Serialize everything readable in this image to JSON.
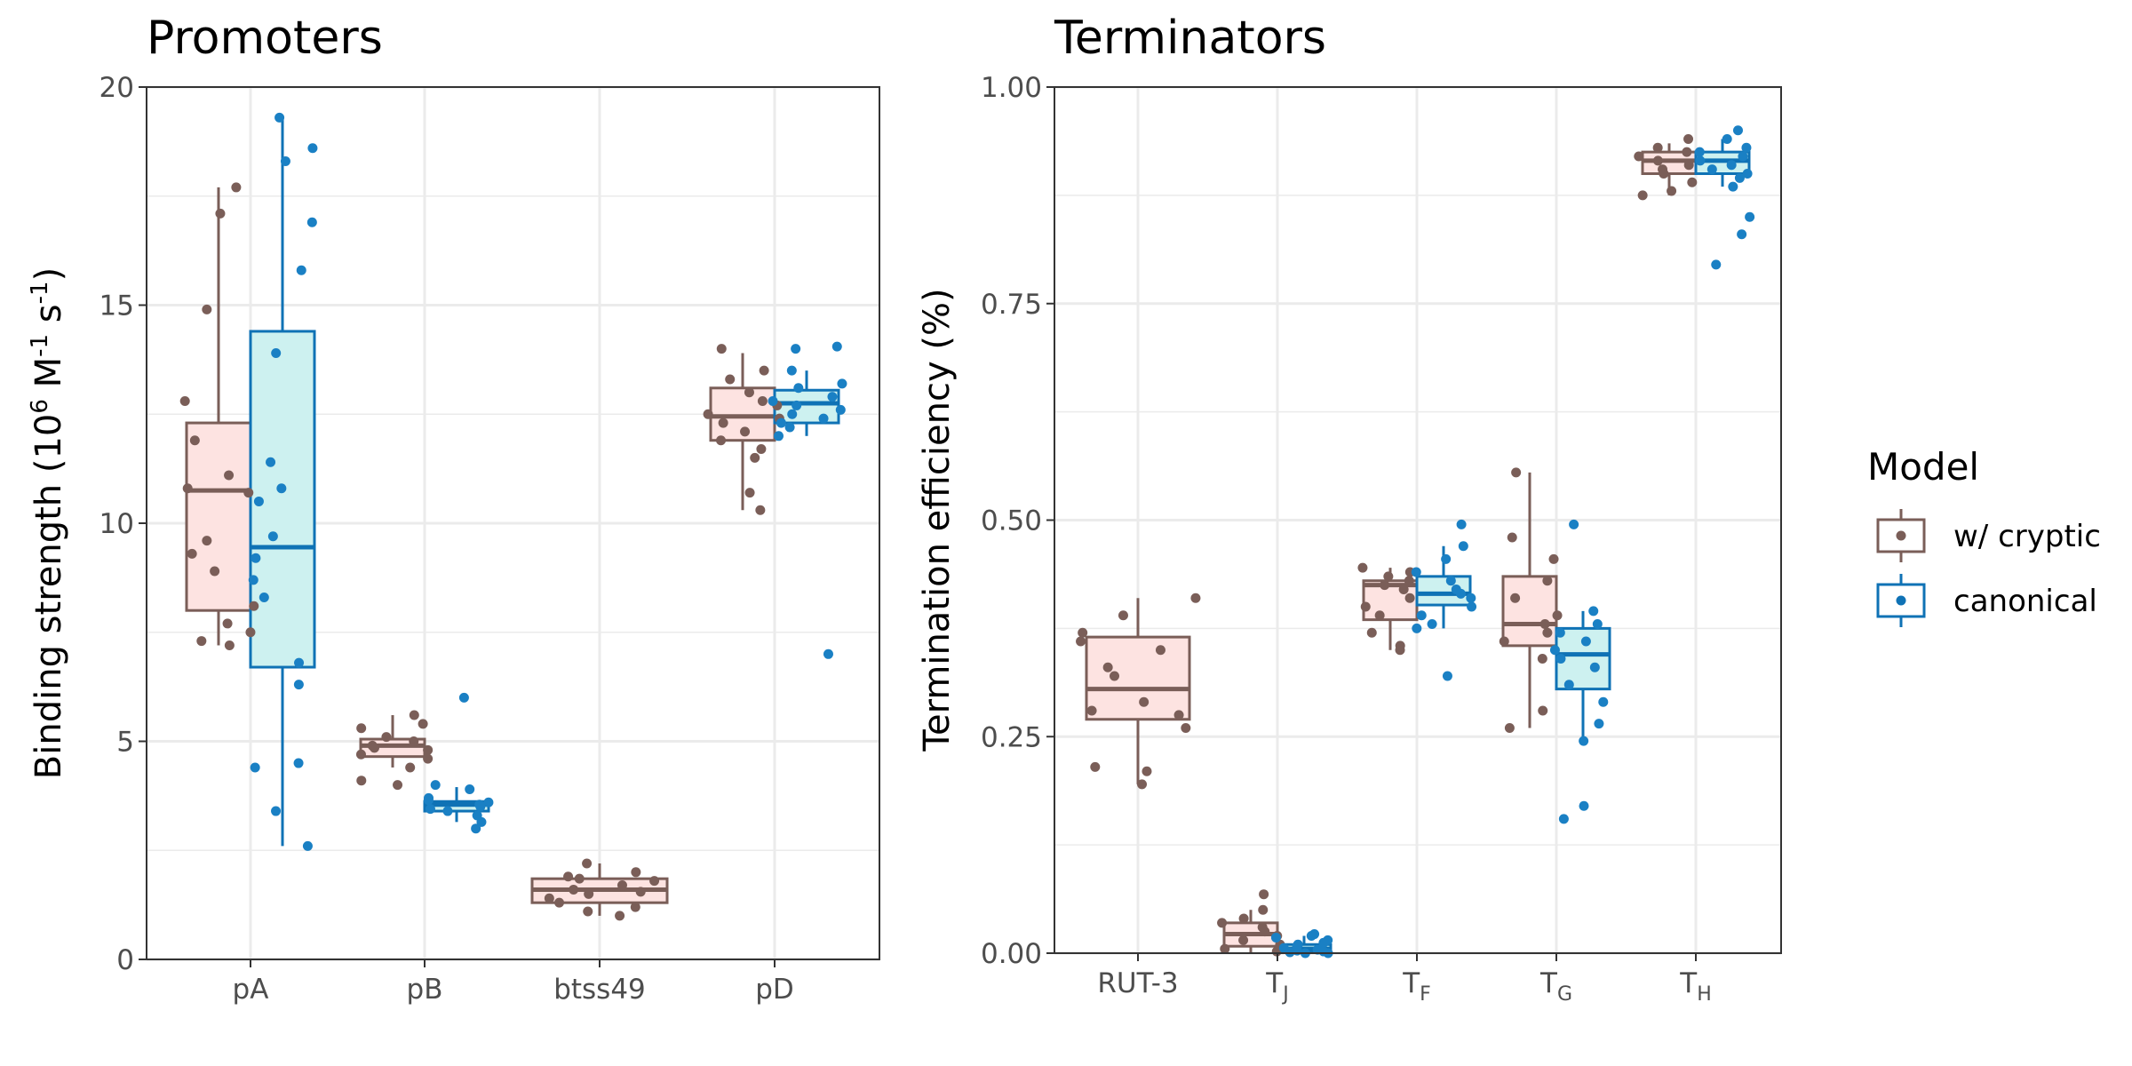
{
  "chart_data": [
    {
      "type": "box",
      "title": "Promoters",
      "ylabel": "Binding strength (10^6 M^-1 s^-1)",
      "ylabel_parts": {
        "lead": "Binding strength (10",
        "sup1": "6",
        "m": " M",
        "sup2": "-1",
        "s": " s",
        "sup3": "-1",
        "tail": ")"
      },
      "ylim": [
        0,
        20
      ],
      "yticks": [
        {
          "value": 0,
          "label": "0"
        },
        {
          "value": 5,
          "label": "5"
        },
        {
          "value": 10,
          "label": "10"
        },
        {
          "value": 15,
          "label": "15"
        },
        {
          "value": 20,
          "label": "20"
        }
      ],
      "categories": [
        {
          "label": "pA",
          "sub": ""
        },
        {
          "label": "pB",
          "sub": ""
        },
        {
          "label": "btss49",
          "sub": ""
        },
        {
          "label": "pD",
          "sub": ""
        }
      ],
      "groups": [
        {
          "category": "pA",
          "series": "w/ cryptic",
          "box": {
            "q1": 8.0,
            "median": 10.75,
            "q3": 12.3,
            "whisker_low": 7.2,
            "whisker_high": 17.7
          },
          "points": [
            17.7,
            17.1,
            14.9,
            12.8,
            11.9,
            11.1,
            10.8,
            10.7,
            9.6,
            9.3,
            8.9,
            8.1,
            7.7,
            7.5,
            7.3,
            7.2
          ]
        },
        {
          "category": "pA",
          "series": "canonical",
          "box": {
            "q1": 6.7,
            "median": 9.45,
            "q3": 14.4,
            "whisker_low": 2.6,
            "whisker_high": 19.3
          },
          "points": [
            19.3,
            18.6,
            18.3,
            16.9,
            15.8,
            13.9,
            11.4,
            10.8,
            10.5,
            9.7,
            9.2,
            8.7,
            8.3,
            6.8,
            6.3,
            4.5,
            4.4,
            3.4,
            2.6
          ]
        },
        {
          "category": "pB",
          "series": "w/ cryptic",
          "box": {
            "q1": 4.65,
            "median": 4.9,
            "q3": 5.05,
            "whisker_low": 4.4,
            "whisker_high": 5.6
          },
          "points": [
            5.6,
            5.4,
            5.3,
            5.1,
            5.0,
            4.9,
            4.85,
            4.8,
            4.7,
            4.6,
            4.4,
            4.1,
            4.0
          ]
        },
        {
          "category": "pB",
          "series": "canonical",
          "box": {
            "q1": 3.4,
            "median": 3.55,
            "q3": 3.62,
            "whisker_low": 3.15,
            "whisker_high": 3.95
          },
          "points": [
            6.0,
            4.0,
            3.9,
            3.7,
            3.65,
            3.6,
            3.55,
            3.5,
            3.45,
            3.4,
            3.3,
            3.15,
            3.0
          ]
        },
        {
          "category": "btss49",
          "series": "w/ cryptic",
          "box": {
            "q1": 1.3,
            "median": 1.6,
            "q3": 1.85,
            "whisker_low": 1.0,
            "whisker_high": 2.2
          },
          "points": [
            2.2,
            2.0,
            1.9,
            1.85,
            1.8,
            1.7,
            1.6,
            1.55,
            1.5,
            1.4,
            1.3,
            1.2,
            1.1,
            1.0
          ]
        },
        {
          "category": "pD",
          "series": "w/ cryptic",
          "box": {
            "q1": 11.9,
            "median": 12.45,
            "q3": 13.1,
            "whisker_low": 10.3,
            "whisker_high": 13.9
          },
          "points": [
            14.0,
            13.5,
            13.3,
            13.0,
            12.8,
            12.7,
            12.5,
            12.4,
            12.3,
            12.1,
            11.9,
            11.7,
            11.5,
            10.7,
            10.3
          ]
        },
        {
          "category": "pD",
          "series": "canonical",
          "box": {
            "q1": 12.3,
            "median": 12.75,
            "q3": 13.05,
            "whisker_low": 12.0,
            "whisker_high": 13.5
          },
          "points": [
            14.05,
            14.0,
            13.5,
            13.2,
            13.1,
            12.9,
            12.8,
            12.7,
            12.6,
            12.5,
            12.4,
            12.3,
            12.2,
            12.0,
            7.0
          ]
        }
      ]
    },
    {
      "type": "box",
      "title": "Terminators",
      "ylabel": "Termination efficiency (%)",
      "ylim": [
        0,
        1
      ],
      "yticks": [
        {
          "value": 0,
          "label": "0.00"
        },
        {
          "value": 0.25,
          "label": "0.25"
        },
        {
          "value": 0.5,
          "label": "0.50"
        },
        {
          "value": 0.75,
          "label": "0.75"
        },
        {
          "value": 1,
          "label": "1.00"
        }
      ],
      "categories": [
        {
          "label": "RUT-3",
          "sub": ""
        },
        {
          "label": "T",
          "sub": "J"
        },
        {
          "label": "T",
          "sub": "F"
        },
        {
          "label": "T",
          "sub": "G"
        },
        {
          "label": "T",
          "sub": "H"
        }
      ],
      "groups": [
        {
          "category": "RUT-3",
          "series": "w/ cryptic",
          "box": {
            "q1": 0.27,
            "median": 0.305,
            "q3": 0.365,
            "whisker_low": 0.195,
            "whisker_high": 0.41
          },
          "points": [
            0.41,
            0.39,
            0.37,
            0.36,
            0.35,
            0.33,
            0.32,
            0.29,
            0.28,
            0.275,
            0.26,
            0.215,
            0.21,
            0.195
          ]
        },
        {
          "category": "TJ",
          "series": "w/ cryptic",
          "box": {
            "q1": 0.008,
            "median": 0.022,
            "q3": 0.035,
            "whisker_low": 0.0,
            "whisker_high": 0.05
          },
          "points": [
            0.068,
            0.05,
            0.04,
            0.035,
            0.03,
            0.025,
            0.02,
            0.015,
            0.01,
            0.005,
            0.002
          ]
        },
        {
          "category": "TJ",
          "series": "canonical",
          "box": {
            "q1": 0.001,
            "median": 0.005,
            "q3": 0.01,
            "whisker_low": 0.0,
            "whisker_high": 0.02
          },
          "points": [
            0.022,
            0.02,
            0.018,
            0.015,
            0.012,
            0.01,
            0.008,
            0.006,
            0.004,
            0.003,
            0.002,
            0.001,
            0.0,
            0.0
          ]
        },
        {
          "category": "TF",
          "series": "w/ cryptic",
          "box": {
            "q1": 0.385,
            "median": 0.425,
            "q3": 0.43,
            "whisker_low": 0.35,
            "whisker_high": 0.445
          },
          "points": [
            0.445,
            0.44,
            0.435,
            0.43,
            0.425,
            0.42,
            0.41,
            0.4,
            0.39,
            0.37,
            0.355,
            0.35
          ]
        },
        {
          "category": "TF",
          "series": "canonical",
          "box": {
            "q1": 0.402,
            "median": 0.415,
            "q3": 0.435,
            "whisker_low": 0.375,
            "whisker_high": 0.47
          },
          "points": [
            0.495,
            0.47,
            0.455,
            0.44,
            0.43,
            0.42,
            0.415,
            0.41,
            0.4,
            0.39,
            0.38,
            0.375,
            0.32
          ]
        },
        {
          "category": "TG",
          "series": "w/ cryptic",
          "box": {
            "q1": 0.355,
            "median": 0.38,
            "q3": 0.435,
            "whisker_low": 0.26,
            "whisker_high": 0.555
          },
          "points": [
            0.555,
            0.48,
            0.455,
            0.43,
            0.41,
            0.39,
            0.38,
            0.37,
            0.36,
            0.34,
            0.28,
            0.26
          ]
        },
        {
          "category": "TG",
          "series": "canonical",
          "box": {
            "q1": 0.305,
            "median": 0.345,
            "q3": 0.375,
            "whisker_low": 0.245,
            "whisker_high": 0.395
          },
          "points": [
            0.495,
            0.395,
            0.38,
            0.37,
            0.36,
            0.35,
            0.34,
            0.33,
            0.31,
            0.29,
            0.265,
            0.245,
            0.17,
            0.155
          ]
        },
        {
          "category": "TH",
          "series": "w/ cryptic",
          "box": {
            "q1": 0.9,
            "median": 0.915,
            "q3": 0.925,
            "whisker_low": 0.875,
            "whisker_high": 0.935
          },
          "points": [
            0.94,
            0.93,
            0.925,
            0.92,
            0.915,
            0.91,
            0.905,
            0.9,
            0.89,
            0.88,
            0.875
          ]
        },
        {
          "category": "TH",
          "series": "canonical",
          "box": {
            "q1": 0.9,
            "median": 0.915,
            "q3": 0.925,
            "whisker_low": 0.885,
            "whisker_high": 0.94
          },
          "points": [
            0.95,
            0.94,
            0.93,
            0.925,
            0.92,
            0.915,
            0.91,
            0.905,
            0.9,
            0.895,
            0.885,
            0.85,
            0.83,
            0.795
          ]
        }
      ]
    }
  ],
  "legend": {
    "title": "Model",
    "position": "right",
    "items": [
      {
        "label": "w/ cryptic",
        "edge": "#7A5E58",
        "fill": "#FDE3E1"
      },
      {
        "label": "canonical",
        "edge": "#0F72B5",
        "fill": "#CDF1F0"
      }
    ]
  },
  "colors": {
    "w/ cryptic": {
      "edge": "#7A5E58",
      "fill": "#FDE3E1",
      "point": "#7A5E58"
    },
    "canonical": {
      "edge": "#0F72B5",
      "fill": "#CDF1F0",
      "point": "#1A80C4"
    },
    "grid": "#EBEBEB",
    "panel_border": "#333333"
  }
}
